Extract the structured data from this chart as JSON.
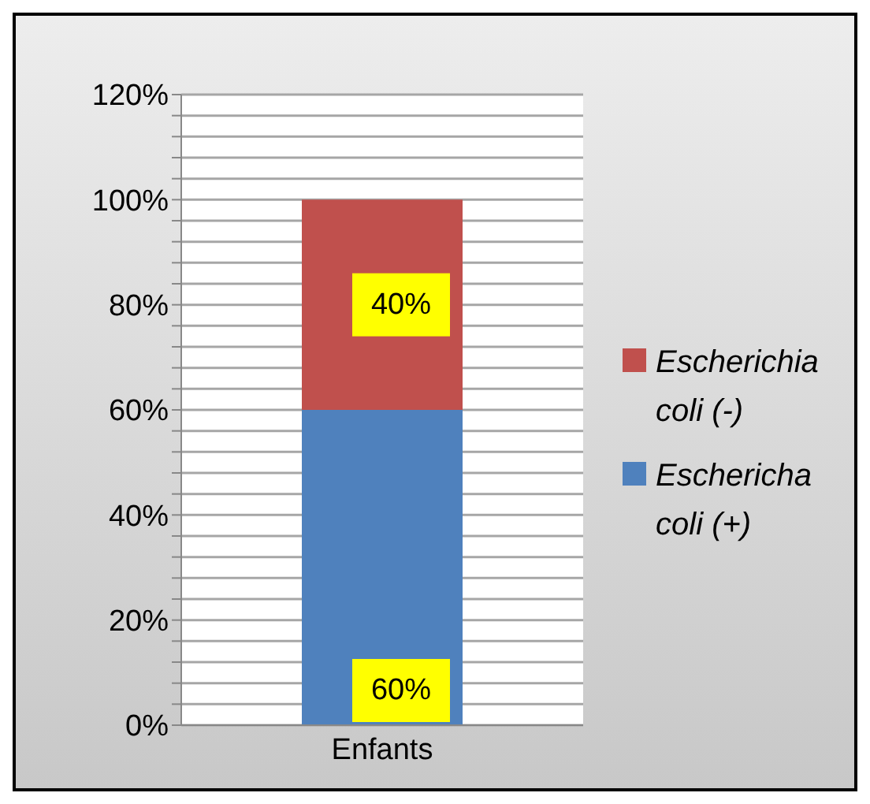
{
  "chart_data": {
    "type": "bar",
    "stacked": true,
    "categories": [
      "Enfants"
    ],
    "series": [
      {
        "name": "Eschericha coli (+)",
        "color": "#4f81bd",
        "values": [
          60
        ],
        "value_labels": [
          "60%"
        ]
      },
      {
        "name": "Escherichia coli (-)",
        "color": "#c0504d",
        "values": [
          40
        ],
        "value_labels": [
          "40%"
        ]
      }
    ],
    "ylim": [
      0,
      120
    ],
    "yticks": [
      {
        "value": 0,
        "label": "0%"
      },
      {
        "value": 4,
        "label": null
      },
      {
        "value": 8,
        "label": null
      },
      {
        "value": 12,
        "label": null
      },
      {
        "value": 16,
        "label": null
      },
      {
        "value": 20,
        "label": "20%"
      },
      {
        "value": 24,
        "label": null
      },
      {
        "value": 28,
        "label": null
      },
      {
        "value": 32,
        "label": null
      },
      {
        "value": 36,
        "label": null
      },
      {
        "value": 40,
        "label": "40%"
      },
      {
        "value": 44,
        "label": null
      },
      {
        "value": 48,
        "label": null
      },
      {
        "value": 52,
        "label": null
      },
      {
        "value": 56,
        "label": null
      },
      {
        "value": 60,
        "label": "60%"
      },
      {
        "value": 64,
        "label": null
      },
      {
        "value": 68,
        "label": null
      },
      {
        "value": 72,
        "label": null
      },
      {
        "value": 76,
        "label": null
      },
      {
        "value": 80,
        "label": "80%"
      },
      {
        "value": 84,
        "label": null
      },
      {
        "value": 88,
        "label": null
      },
      {
        "value": 92,
        "label": null
      },
      {
        "value": 96,
        "label": null
      },
      {
        "value": 100,
        "label": "100%"
      },
      {
        "value": 104,
        "label": null
      },
      {
        "value": 108,
        "label": null
      },
      {
        "value": 112,
        "label": null
      },
      {
        "value": 116,
        "label": null
      },
      {
        "value": 120,
        "label": "120%"
      }
    ],
    "grid": "y",
    "legend": "right"
  }
}
